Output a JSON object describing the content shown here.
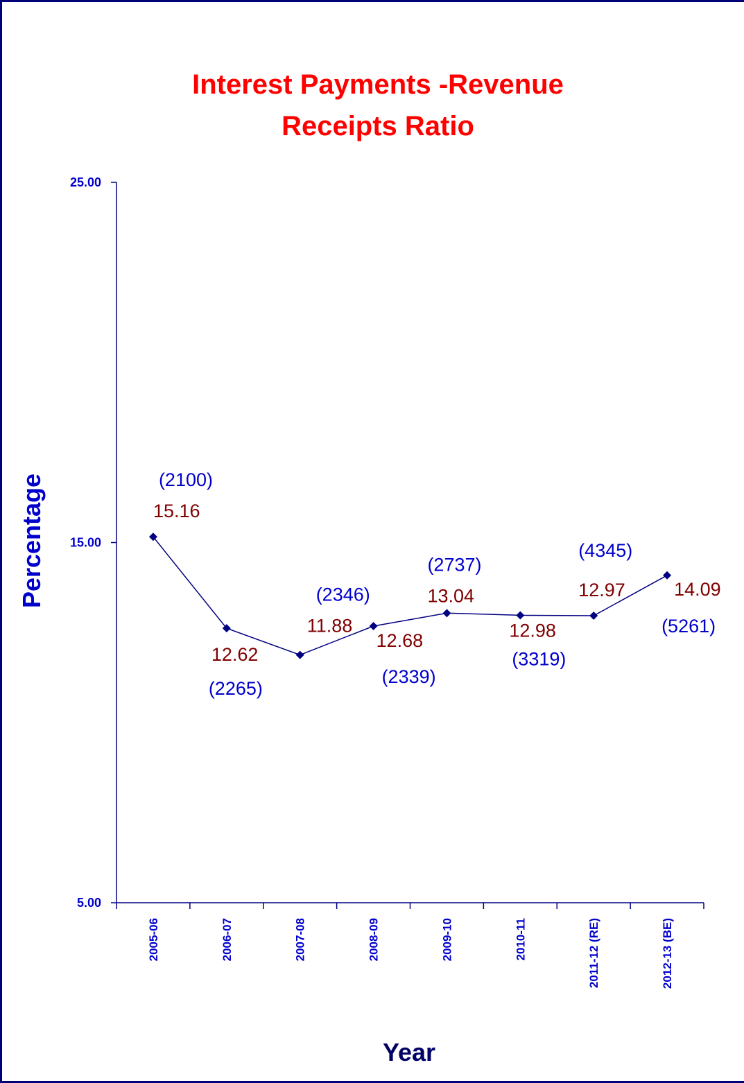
{
  "chart_data": {
    "type": "line",
    "title_lines": [
      "Interest Payments -Revenue",
      "Receipts Ratio"
    ],
    "xlabel": "Year",
    "ylabel": "Percentage",
    "ylim": [
      5,
      25
    ],
    "yticks": [
      "25.00",
      "15.00",
      "5.00"
    ],
    "grid": false,
    "legend": "none",
    "categories": [
      "2005-06",
      "2006-07",
      "2007-08",
      "2008-09",
      "2009-10",
      "2010-11",
      "2011-12 (RE)",
      "2012-13 (BE)"
    ],
    "series": [
      {
        "values": [
          15.16,
          12.62,
          11.88,
          12.68,
          13.04,
          12.98,
          12.97,
          14.09
        ],
        "value_labels": [
          "15.16",
          "12.62",
          "11.88",
          "12.68",
          "13.04",
          "12.98",
          "12.97",
          "14.09"
        ],
        "amount_labels": [
          "(2100)",
          "(2265)",
          "(2346)",
          "(2339)",
          "(2737)",
          "(3319)",
          "(4345)",
          "(5261)"
        ]
      }
    ],
    "colors": {
      "title": "#ff0000",
      "line": "#000080",
      "axis": "#000080",
      "value_label": "#800000",
      "amount_label": "#0000cc",
      "tick_label": "#0000cc"
    }
  }
}
